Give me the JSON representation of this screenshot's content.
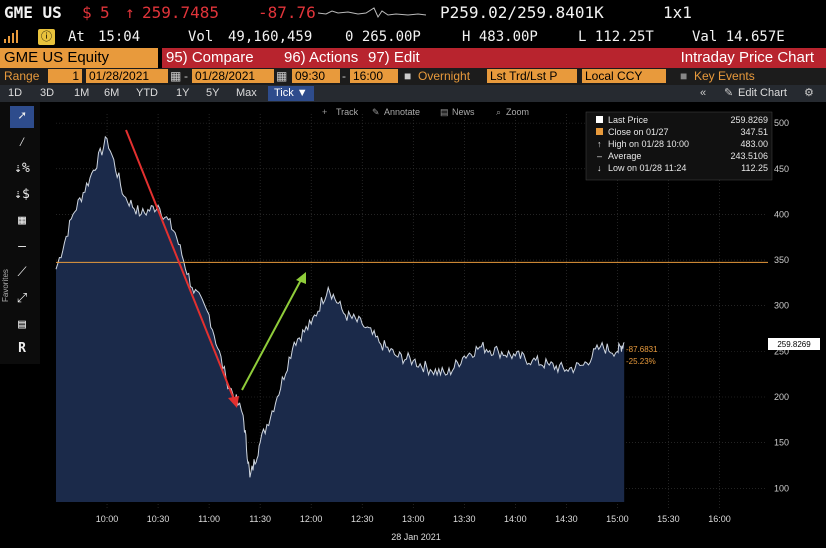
{
  "ticker": {
    "symbol": "GME US",
    "dollar": "$",
    "five": "5",
    "arrow": "↑",
    "last": "259.7485",
    "change": "-87.76",
    "bid_ask": "P259.02/259.8401K",
    "size": "1x1"
  },
  "stats": {
    "at_label": "At",
    "at_time": "15:04",
    "vol_label": "Vol",
    "vol": "49,160,459",
    "open": "0 265.00P",
    "high": "H 483.00P",
    "low": "L 112.25T",
    "val": "Val 14.657E"
  },
  "menu": {
    "security": "GME US Equity",
    "compare": "95) Compare",
    "actions": "96) Actions",
    "edit": "97) Edit",
    "title": "Intraday Price Chart"
  },
  "range": {
    "label": "Range",
    "start_num": "1",
    "start_date": "01/28/2021",
    "end_date": "01/28/2021",
    "start_time": "09:30",
    "end_time": "16:00",
    "overnight": "Overnight",
    "trade": "Lst Trd/Lst P",
    "ccy": "Local CCY",
    "key_events": "Key Events"
  },
  "periods": [
    "1D",
    "3D",
    "1M",
    "6M",
    "YTD",
    "1Y",
    "5Y",
    "Max"
  ],
  "tick_label": "Tick ▼",
  "edit_chart": "Edit Chart",
  "chart_tools": {
    "track": "Track",
    "annotate": "Annotate",
    "news": "News",
    "zoom": "Zoom"
  },
  "toolbar_caption": "Favorites",
  "legend": [
    {
      "label": "Last Price",
      "value": "259.8269",
      "color": "#ffffff"
    },
    {
      "label": "Close on 01/27",
      "value": "347.51",
      "color": "#e89a3c"
    },
    {
      "label": "High on 01/28 10:00",
      "value": "483.00",
      "color": "#dddddd"
    },
    {
      "label": "Average",
      "value": "243.5106",
      "color": "#dddddd"
    },
    {
      "label": "Low on 01/28 11:24",
      "value": "112.25",
      "color": "#dddddd"
    }
  ],
  "price_tag": "259.8269",
  "change_tag": "-87.6831",
  "pct_tag": "-25.23%",
  "date_label": "28 Jan 2021",
  "chart_data": {
    "type": "area",
    "x": [
      "09:30",
      "09:40",
      "09:50",
      "10:00",
      "10:10",
      "10:20",
      "10:30",
      "10:40",
      "10:50",
      "11:00",
      "11:10",
      "11:20",
      "11:24",
      "11:30",
      "11:40",
      "11:50",
      "12:00",
      "12:10",
      "12:20",
      "12:30",
      "12:40",
      "12:50",
      "13:00",
      "13:10",
      "13:20",
      "13:30",
      "13:40",
      "13:50",
      "14:00",
      "14:10",
      "14:20",
      "14:30",
      "14:40",
      "14:50",
      "15:00",
      "15:04"
    ],
    "y": [
      340,
      400,
      440,
      483,
      420,
      400,
      410,
      380,
      320,
      290,
      220,
      180,
      112,
      150,
      200,
      260,
      280,
      320,
      290,
      280,
      260,
      245,
      240,
      230,
      225,
      245,
      255,
      250,
      245,
      240,
      235,
      230,
      235,
      255,
      250,
      259.83
    ],
    "xticks": [
      "10:00",
      "10:30",
      "11:00",
      "11:30",
      "12:00",
      "12:30",
      "13:00",
      "13:30",
      "14:00",
      "14:30",
      "15:00",
      "15:30",
      "16:00"
    ],
    "yticks": [
      100,
      150,
      200,
      250,
      300,
      350,
      400,
      450,
      500
    ],
    "ylim": [
      85,
      510
    ],
    "prev_close": 347.51,
    "colors": {
      "fill": "#1b2a4a",
      "line": "#cfd6e0",
      "prev_close": "#e89a3c",
      "grid": "#3a3a3a",
      "arrow_down": "#e3302f",
      "arrow_up": "#8fcc3a"
    }
  }
}
